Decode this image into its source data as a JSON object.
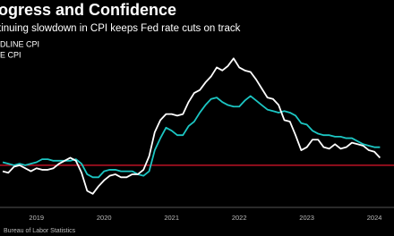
{
  "chart_data": {
    "type": "line",
    "title": "ogress and Confidence",
    "subtitle": "tinuing slowdown in CPI keeps Fed rate cuts on track",
    "source": "Bureau of Labor Statistics",
    "x": [
      2019.0,
      2019.083,
      2019.167,
      2019.25,
      2019.333,
      2019.417,
      2019.5,
      2019.583,
      2019.667,
      2019.75,
      2019.833,
      2019.917,
      2020.0,
      2020.083,
      2020.167,
      2020.25,
      2020.333,
      2020.417,
      2020.5,
      2020.583,
      2020.667,
      2020.75,
      2020.833,
      2020.917,
      2021.0,
      2021.083,
      2021.167,
      2021.25,
      2021.333,
      2021.417,
      2021.5,
      2021.583,
      2021.667,
      2021.75,
      2021.833,
      2021.917,
      2022.0,
      2022.083,
      2022.167,
      2022.25,
      2022.333,
      2022.417,
      2022.5,
      2022.583,
      2022.667,
      2022.75,
      2022.833,
      2022.917,
      2023.0,
      2023.083,
      2023.167,
      2023.25,
      2023.333,
      2023.417,
      2023.5,
      2023.583,
      2023.667,
      2023.75,
      2023.833,
      2023.917,
      2024.0,
      2024.083,
      2024.167,
      2024.25,
      2024.333,
      2024.417,
      2024.5,
      2024.583
    ],
    "series": [
      {
        "name": "DLINE CPI",
        "color": "#ffffff",
        "values": [
          1.6,
          1.5,
          1.9,
          2.0,
          1.8,
          1.6,
          1.8,
          1.7,
          1.7,
          1.8,
          2.1,
          2.3,
          2.5,
          2.3,
          1.5,
          0.3,
          0.1,
          0.6,
          1.0,
          1.3,
          1.4,
          1.2,
          1.2,
          1.4,
          1.4,
          1.7,
          2.6,
          4.2,
          5.0,
          5.4,
          5.4,
          5.3,
          5.4,
          6.2,
          6.8,
          7.0,
          7.5,
          7.9,
          8.5,
          8.3,
          8.6,
          9.1,
          8.5,
          8.3,
          8.2,
          7.7,
          7.1,
          6.5,
          6.4,
          6.0,
          5.0,
          4.9,
          4.0,
          3.0,
          3.2,
          3.7,
          3.7,
          3.2,
          3.1,
          3.4,
          3.1,
          3.2,
          3.5,
          3.4,
          3.3,
          3.0,
          2.9,
          2.5
        ]
      },
      {
        "name": "E CPI",
        "color": "#1cc6c3",
        "values": [
          2.2,
          2.1,
          2.0,
          2.1,
          2.0,
          2.1,
          2.2,
          2.4,
          2.4,
          2.3,
          2.3,
          2.3,
          2.3,
          2.4,
          2.1,
          1.4,
          1.2,
          1.2,
          1.6,
          1.7,
          1.7,
          1.6,
          1.6,
          1.6,
          1.4,
          1.3,
          1.6,
          3.0,
          3.8,
          4.5,
          4.3,
          4.0,
          4.0,
          4.6,
          4.9,
          5.5,
          6.0,
          6.4,
          6.5,
          6.2,
          6.0,
          5.9,
          5.9,
          6.3,
          6.6,
          6.3,
          6.0,
          5.7,
          5.6,
          5.5,
          5.6,
          5.5,
          5.3,
          4.8,
          4.7,
          4.3,
          4.1,
          4.0,
          4.0,
          3.9,
          3.9,
          3.8,
          3.8,
          3.6,
          3.4,
          3.3,
          3.2,
          3.2
        ]
      }
    ],
    "target_line": {
      "value": 2,
      "color": "#e0162b"
    },
    "xlim": [
      2018.96,
      2024.79
    ],
    "ylim": [
      -0.8,
      11.2
    ],
    "xticks": [
      {
        "value": 2019.5,
        "label": "2019"
      },
      {
        "value": 2020.5,
        "label": "2020"
      },
      {
        "value": 2021.5,
        "label": "2021"
      },
      {
        "value": 2022.5,
        "label": "2022"
      },
      {
        "value": 2023.5,
        "label": "2023"
      },
      {
        "value": 2024.5,
        "label": "2024"
      }
    ]
  }
}
